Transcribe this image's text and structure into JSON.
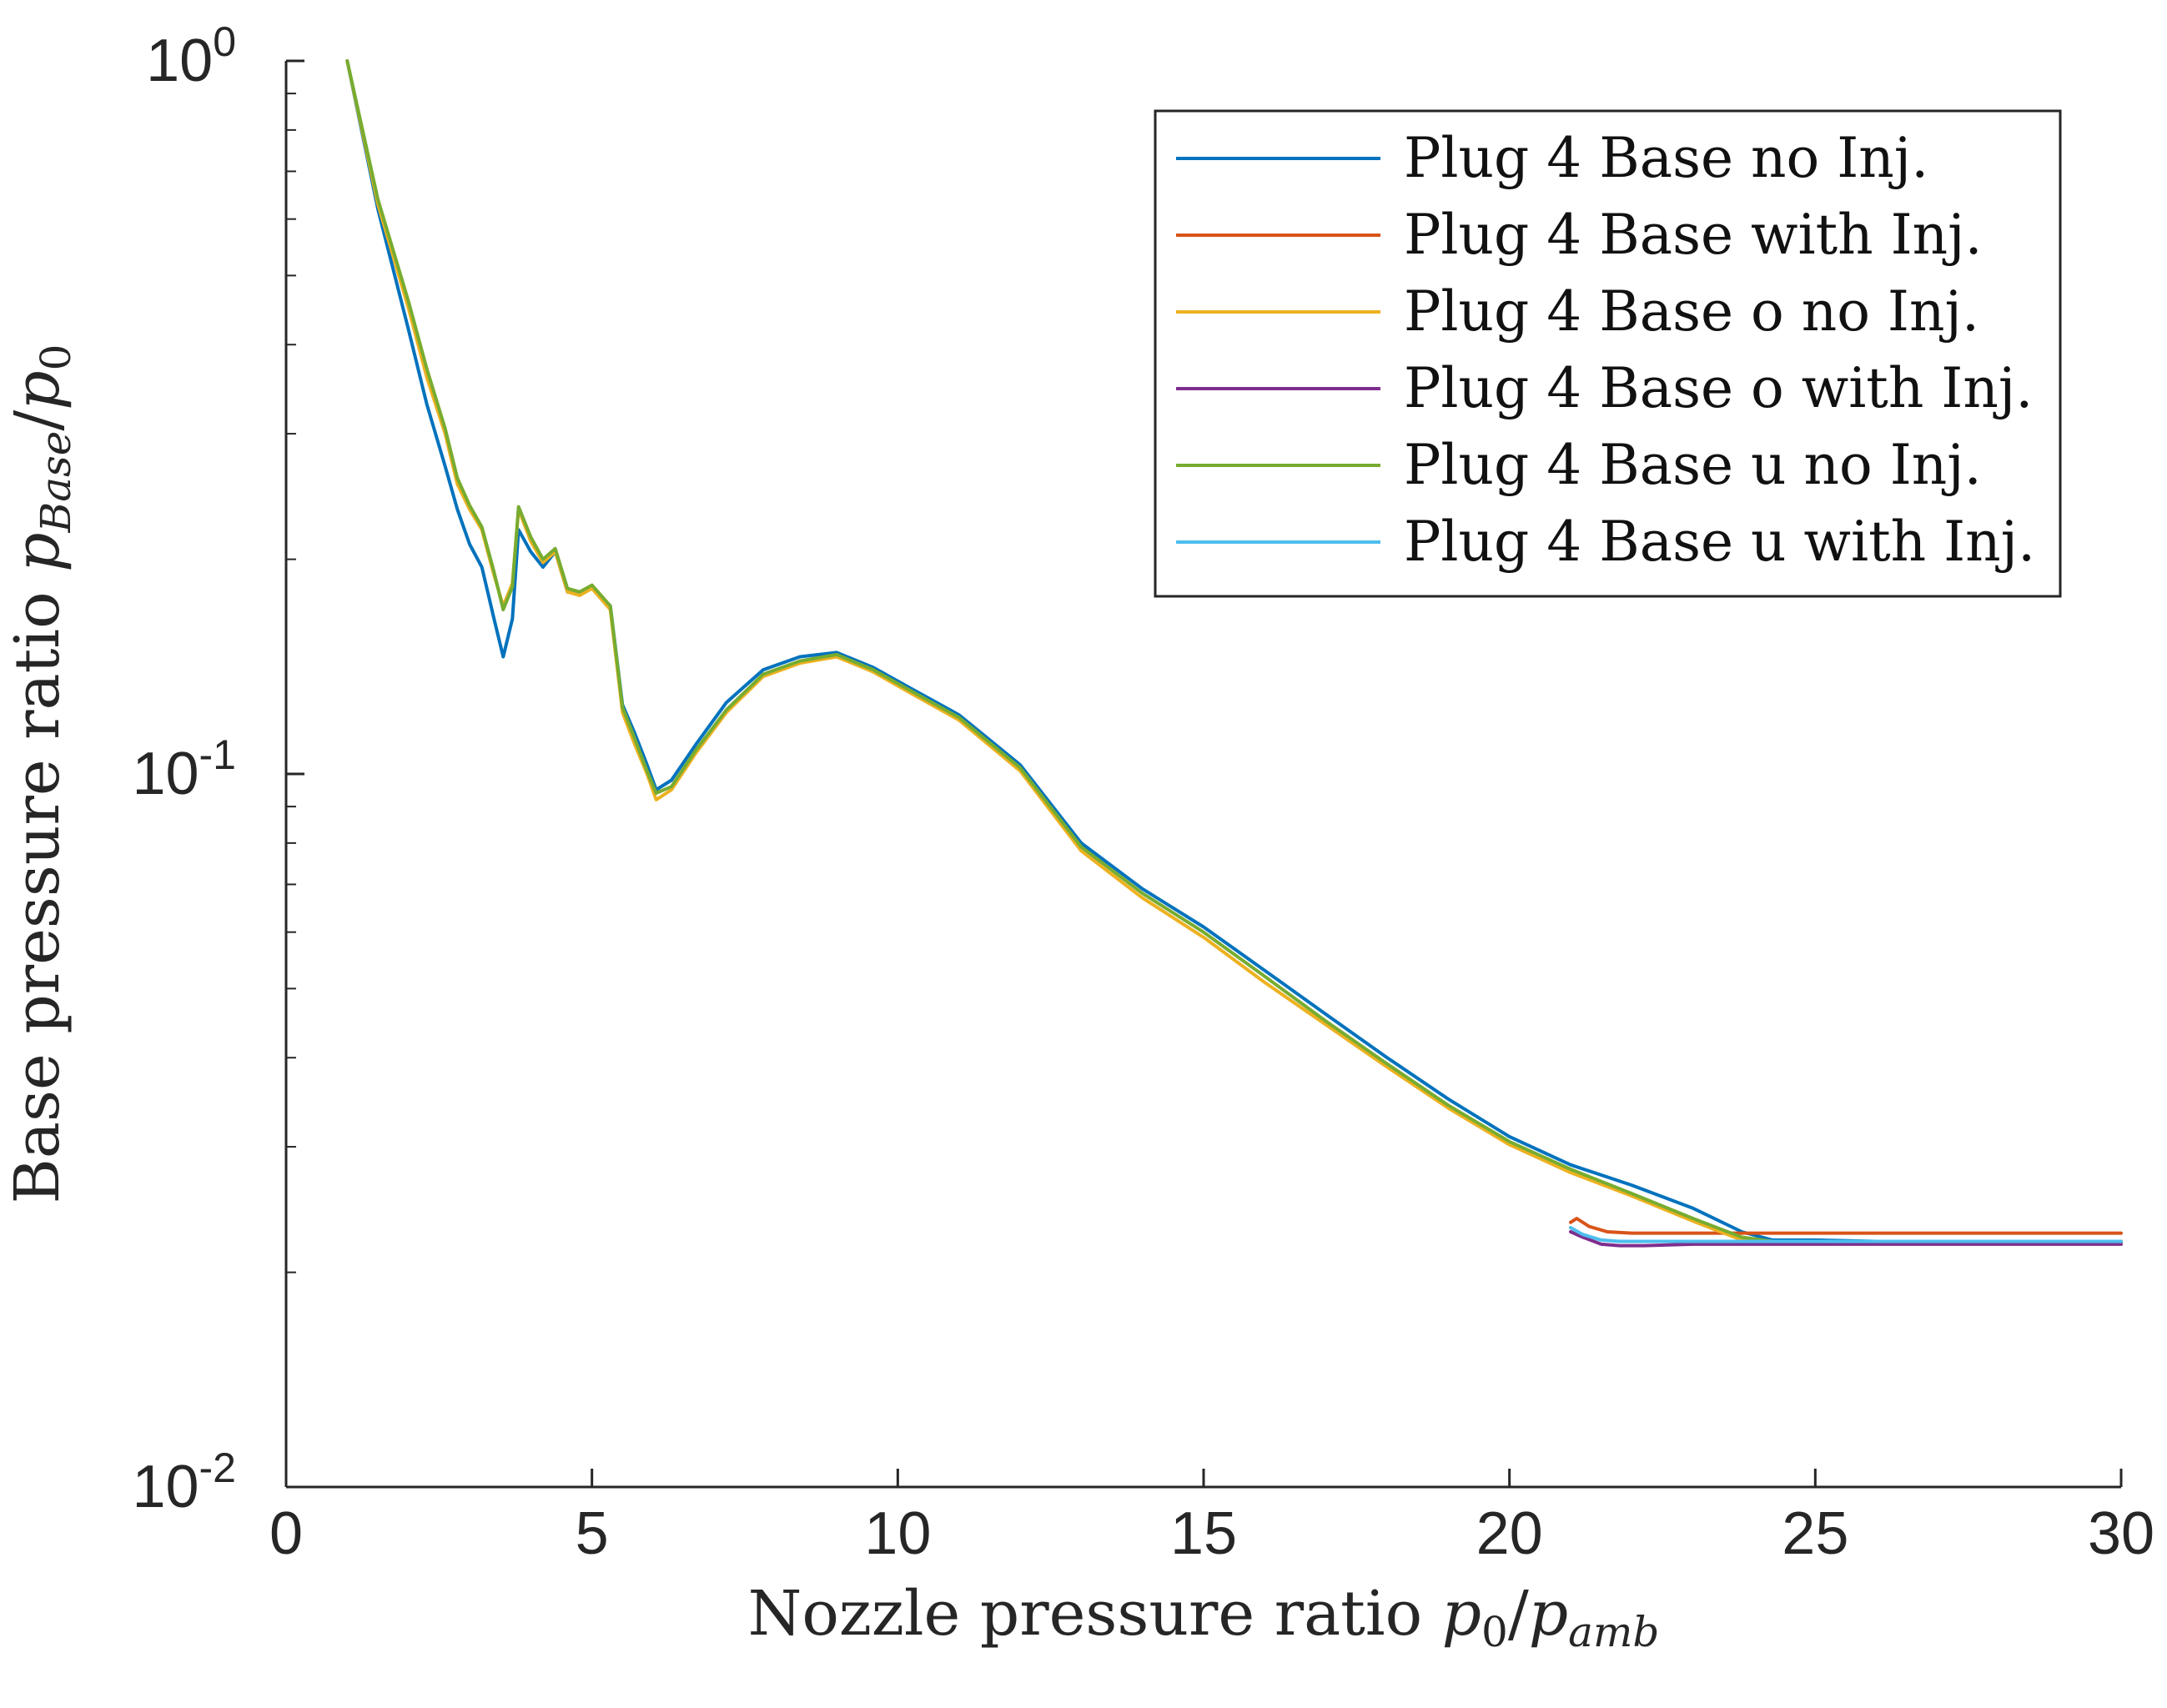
{
  "chart_data": {
    "type": "line",
    "title": "",
    "xlabel": {
      "text": "Nozzle pressure ratio ",
      "math": "p",
      "sub0": "0",
      "slash": "/",
      "math2": "p",
      "sub2": "amb"
    },
    "ylabel": {
      "text": "Base pressure ratio ",
      "math": "p",
      "sub": "Base",
      "slash": "/",
      "math2": "p",
      "sub2": "0"
    },
    "x_scale": "linear",
    "y_scale": "log",
    "xlim": [
      0,
      30
    ],
    "ylim": [
      0.01,
      1
    ],
    "x_ticks": [
      0,
      5,
      10,
      15,
      20,
      25,
      30
    ],
    "x_tick_labels": [
      "0",
      "5",
      "10",
      "15",
      "20",
      "25",
      "30"
    ],
    "y_ticks": [
      0.01,
      0.1,
      1
    ],
    "y_tick_labels": [
      {
        "base": "10",
        "exp": "-2"
      },
      {
        "base": "10",
        "exp": "-1"
      },
      {
        "base": "10",
        "exp": "0"
      }
    ],
    "legend_position": "top-right",
    "series": [
      {
        "name": "Plug 4 Base no Inj.",
        "color": "#0072BD",
        "x": [
          1.0,
          1.5,
          2.0,
          2.3,
          2.6,
          2.8,
          3.0,
          3.2,
          3.4,
          3.55,
          3.7,
          3.8,
          4.0,
          4.2,
          4.4,
          4.6,
          4.8,
          5.0,
          5.3,
          5.5,
          5.7,
          5.9,
          6.05,
          6.3,
          6.7,
          7.2,
          7.8,
          8.4,
          9.0,
          9.6,
          10.2,
          11.0,
          12.0,
          13.0,
          14.0,
          15.0,
          16.0,
          17.0,
          18.0,
          19.0,
          20.0,
          21.0,
          22.0,
          23.0,
          23.8,
          24.3,
          25.0,
          26.0,
          27.0,
          28.0,
          29.0,
          30.0
        ],
        "y": [
          1.0,
          0.62,
          0.42,
          0.33,
          0.27,
          0.235,
          0.21,
          0.195,
          0.165,
          0.146,
          0.165,
          0.22,
          0.205,
          0.195,
          0.205,
          0.18,
          0.18,
          0.183,
          0.172,
          0.125,
          0.114,
          0.103,
          0.095,
          0.098,
          0.11,
          0.126,
          0.14,
          0.146,
          0.148,
          0.141,
          0.132,
          0.121,
          0.103,
          0.08,
          0.069,
          0.061,
          0.053,
          0.046,
          0.04,
          0.035,
          0.031,
          0.0283,
          0.0265,
          0.0246,
          0.0228,
          0.0222,
          0.0222,
          0.0221,
          0.0221,
          0.0221,
          0.0221,
          0.0221
        ]
      },
      {
        "name": "Plug 4 Base with Inj.",
        "color": "#D95319",
        "x": [
          21.0,
          21.1,
          21.3,
          21.6,
          22.0,
          23.0,
          24.0,
          25.0,
          26.0,
          27.0,
          28.0,
          29.0,
          30.0
        ],
        "y": [
          0.0235,
          0.0238,
          0.0232,
          0.0228,
          0.0227,
          0.0227,
          0.0227,
          0.0227,
          0.0227,
          0.0227,
          0.0227,
          0.0227,
          0.0227
        ]
      },
      {
        "name": "Plug 4 Base o no Inj.",
        "color": "#EDB120",
        "x": [
          1.0,
          1.5,
          2.0,
          2.3,
          2.6,
          2.8,
          3.0,
          3.2,
          3.4,
          3.55,
          3.7,
          3.8,
          4.0,
          4.2,
          4.4,
          4.6,
          4.8,
          5.0,
          5.3,
          5.5,
          5.7,
          5.9,
          6.05,
          6.3,
          6.7,
          7.2,
          7.8,
          8.4,
          9.0,
          9.6,
          10.2,
          11.0,
          12.0,
          13.0,
          14.0,
          15.0,
          16.0,
          17.0,
          18.0,
          19.0,
          20.0,
          21.0,
          22.0,
          23.0,
          23.8,
          24.3,
          25.0,
          26.0,
          27.0,
          28.0,
          29.0,
          30.0
        ],
        "y": [
          1.0,
          0.63,
          0.45,
          0.36,
          0.3,
          0.255,
          0.235,
          0.22,
          0.19,
          0.172,
          0.185,
          0.235,
          0.212,
          0.198,
          0.205,
          0.18,
          0.178,
          0.182,
          0.17,
          0.122,
          0.11,
          0.1,
          0.092,
          0.095,
          0.107,
          0.122,
          0.137,
          0.143,
          0.146,
          0.139,
          0.13,
          0.119,
          0.101,
          0.078,
          0.067,
          0.059,
          0.051,
          0.0445,
          0.0388,
          0.034,
          0.0302,
          0.0276,
          0.0256,
          0.0236,
          0.0222,
          0.022,
          0.022,
          0.022,
          0.022,
          0.022,
          0.022,
          0.022
        ]
      },
      {
        "name": "Plug 4 Base o with Inj.",
        "color": "#7E2F8E",
        "x": [
          21.0,
          21.2,
          21.5,
          21.8,
          22.2,
          23.0,
          24.0,
          25.0,
          26.0,
          27.0,
          28.0,
          29.0,
          30.0
        ],
        "y": [
          0.0228,
          0.0224,
          0.0219,
          0.0218,
          0.0218,
          0.0219,
          0.0219,
          0.0219,
          0.0219,
          0.0219,
          0.0219,
          0.0219,
          0.0219
        ]
      },
      {
        "name": "Plug 4 Base u no Inj.",
        "color": "#77AC30",
        "x": [
          1.0,
          1.5,
          2.0,
          2.3,
          2.6,
          2.8,
          3.0,
          3.2,
          3.4,
          3.55,
          3.7,
          3.8,
          4.0,
          4.2,
          4.4,
          4.6,
          4.8,
          5.0,
          5.3,
          5.5,
          5.7,
          5.9,
          6.05,
          6.3,
          6.7,
          7.2,
          7.8,
          8.4,
          9.0,
          9.6,
          10.2,
          11.0,
          12.0,
          13.0,
          14.0,
          15.0,
          16.0,
          17.0,
          18.0,
          19.0,
          20.0,
          21.0,
          22.0,
          23.0,
          23.8,
          24.3,
          25.0,
          26.0,
          27.0,
          28.0,
          29.0,
          30.0
        ],
        "y": [
          1.0,
          0.64,
          0.46,
          0.37,
          0.305,
          0.26,
          0.238,
          0.222,
          0.192,
          0.17,
          0.183,
          0.237,
          0.215,
          0.2,
          0.207,
          0.182,
          0.18,
          0.184,
          0.172,
          0.124,
          0.112,
          0.101,
          0.094,
          0.096,
          0.108,
          0.123,
          0.138,
          0.144,
          0.147,
          0.14,
          0.131,
          0.12,
          0.102,
          0.079,
          0.068,
          0.06,
          0.052,
          0.045,
          0.0392,
          0.0343,
          0.0305,
          0.0279,
          0.0258,
          0.0238,
          0.0224,
          0.0221,
          0.0221,
          0.0221,
          0.0221,
          0.0221,
          0.0221,
          0.0221
        ]
      },
      {
        "name": "Plug 4 Base u with Inj.",
        "color": "#4DBEEE",
        "x": [
          21.0,
          21.2,
          21.5,
          21.8,
          22.2,
          23.0,
          24.0,
          25.0,
          26.0,
          27.0,
          28.0,
          29.0,
          30.0
        ],
        "y": [
          0.0231,
          0.0226,
          0.0222,
          0.0221,
          0.0221,
          0.0221,
          0.0221,
          0.0221,
          0.0221,
          0.0221,
          0.0221,
          0.0221,
          0.0221
        ]
      }
    ]
  }
}
